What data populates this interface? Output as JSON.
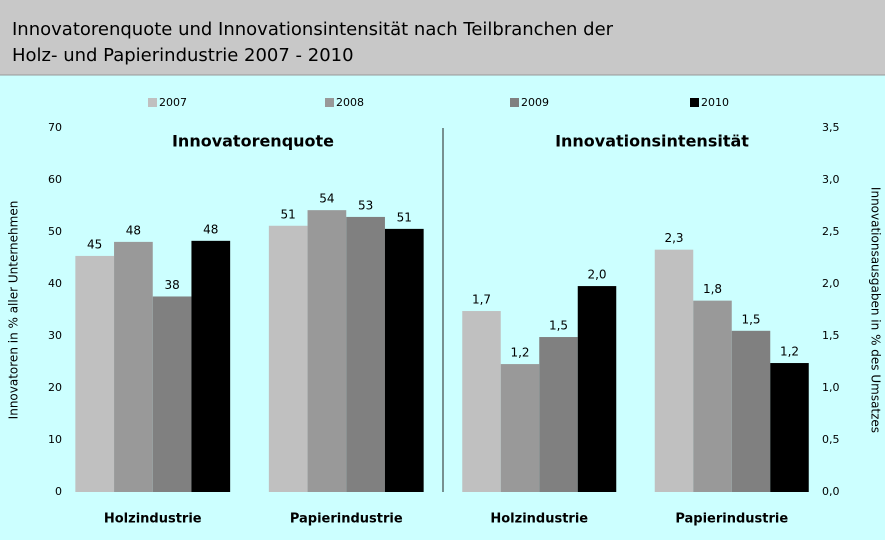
{
  "title": [
    "Innovatorenquote und Innovationsintensität nach Teilbranchen der",
    "Holz- und Papierindustrie 2007 - 2010"
  ],
  "chart_data": [
    {
      "type": "bar",
      "subtitle": "Innovatorenquote",
      "ylabel": "Innovatoren in % aller Unternehmen",
      "categories": [
        "Holzindustrie",
        "Papierindustrie"
      ],
      "ylim": [
        0,
        70
      ],
      "yticks": [
        0,
        10,
        20,
        30,
        40,
        50,
        60,
        70
      ],
      "series": [
        {
          "name": "2007",
          "color": "#c0c0c0",
          "values": [
            45.4,
            51.2
          ],
          "value_labels": [
            "45",
            "51"
          ]
        },
        {
          "name": "2008",
          "color": "#999999",
          "values": [
            48.1,
            54.2
          ],
          "value_labels": [
            "48",
            "54"
          ]
        },
        {
          "name": "2009",
          "color": "#808080",
          "values": [
            37.6,
            52.9
          ],
          "value_labels": [
            "38",
            "53"
          ]
        },
        {
          "name": "2010",
          "color": "#000000",
          "values": [
            48.3,
            50.6
          ],
          "value_labels": [
            "48",
            "51"
          ]
        }
      ]
    },
    {
      "type": "bar",
      "subtitle": "Innovationsintensität",
      "y2label": "Innovationsausgaben in % des Umsatzes",
      "categories": [
        "Holzindustrie",
        "Papierindustrie"
      ],
      "y2lim": [
        0,
        3.5
      ],
      "y2ticks": [
        {
          "value": 0,
          "label": "0,0"
        },
        {
          "value": 0.5,
          "label": "0,5"
        },
        {
          "value": 1,
          "label": "1,0"
        },
        {
          "value": 1.5,
          "label": "1,5"
        },
        {
          "value": 2,
          "label": "2,0"
        },
        {
          "value": 2.5,
          "label": "2,5"
        },
        {
          "value": 3,
          "label": "3,0"
        },
        {
          "value": 3.5,
          "label": "3,5"
        }
      ],
      "series": [
        {
          "color": "#c0c0c0",
          "axis": "y2",
          "values": [
            1.74,
            2.33
          ],
          "value_labels": [
            "1,7",
            "2,3"
          ]
        },
        {
          "color": "#999999",
          "axis": "y2",
          "values": [
            1.23,
            1.84
          ],
          "value_labels": [
            "1,2",
            "1,8"
          ]
        },
        {
          "color": "#808080",
          "axis": "y2",
          "values": [
            1.49,
            1.55
          ],
          "value_labels": [
            "1,5",
            "1,5"
          ]
        },
        {
          "color": "#000000",
          "axis": "y2",
          "values": [
            1.98,
            1.24
          ],
          "value_labels": [
            "2,0",
            "1,2"
          ]
        }
      ]
    }
  ]
}
